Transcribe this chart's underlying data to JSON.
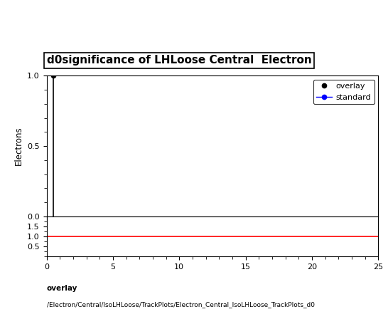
{
  "title": "d0significance of LHLoose Central  Electron",
  "title_fontsize": 11,
  "title_fontweight": "bold",
  "ylabel_main": "Electrons",
  "overlay_x": [
    0.5
  ],
  "overlay_y": [
    1.0
  ],
  "ratio_y": 1.0,
  "xlim": [
    0,
    25
  ],
  "ylim_main": [
    0,
    1.0
  ],
  "ylim_ratio": [
    0,
    2.0
  ],
  "ratio_yticks": [
    0.5,
    1.0,
    1.5
  ],
  "main_yticks": [
    0,
    0.5,
    1.0
  ],
  "xticks": [
    0,
    5,
    10,
    15,
    20,
    25
  ],
  "overlay_color": "#000000",
  "standard_color": "#0000ff",
  "ratio_line_color": "#ff0000",
  "legend_entries": [
    "overlay",
    "standard"
  ],
  "footer_line1": "overlay",
  "footer_line2": "/Electron/Central/IsoLHLoose/TrackPlots/Electron_Central_IsoLHLoose_TrackPlots_d0",
  "footer_fontsize": 6.5,
  "background_color": "#ffffff"
}
